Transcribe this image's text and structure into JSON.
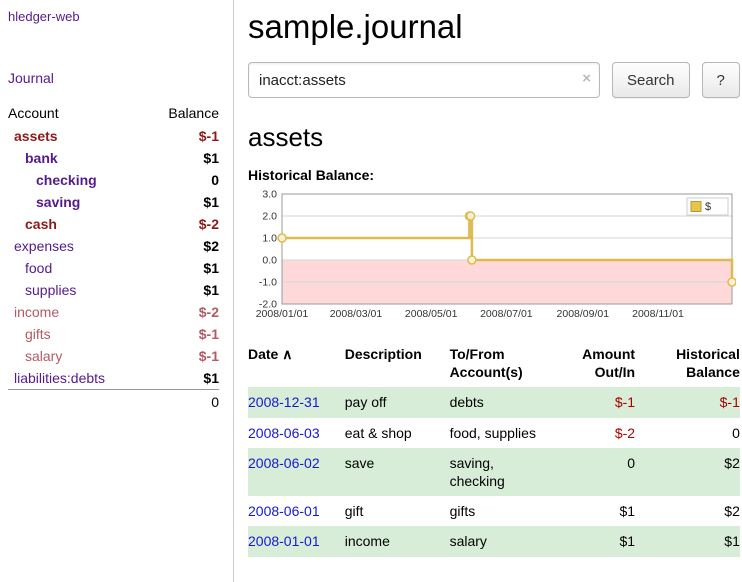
{
  "app_title": "hledger-web",
  "colors": {
    "link_purple": "#551A8B",
    "date_link_blue": "#1818CC",
    "negative_dark_red": "#8B1A1A",
    "negative_soft_red": "#B25A66",
    "negative_register_red": "#A80000",
    "row_shade_green": "#D8EDD8",
    "chart_line_gold": "#DFBA4E",
    "chart_negative_pink": "#FFD9D9"
  },
  "sidebar": {
    "journal_link": "Journal",
    "headers": {
      "account": "Account",
      "balance": "Balance"
    },
    "accounts": [
      {
        "name": "assets",
        "balance": "$-1",
        "depth": 0,
        "inacct": true
      },
      {
        "name": "bank",
        "balance": "$1",
        "depth": 1,
        "inacct": true
      },
      {
        "name": "checking",
        "balance": "0",
        "depth": 2,
        "inacct": true
      },
      {
        "name": "saving",
        "balance": "$1",
        "depth": 2,
        "inacct": true
      },
      {
        "name": "cash",
        "balance": "$-2",
        "depth": 1,
        "inacct": true
      },
      {
        "name": "expenses",
        "balance": "$2",
        "depth": 0,
        "inacct": false
      },
      {
        "name": "food",
        "balance": "$1",
        "depth": 1,
        "inacct": false
      },
      {
        "name": "supplies",
        "balance": "$1",
        "depth": 1,
        "inacct": false
      },
      {
        "name": "income",
        "balance": "$-2",
        "depth": 0,
        "inacct": false
      },
      {
        "name": "gifts",
        "balance": "$-1",
        "depth": 1,
        "inacct": false
      },
      {
        "name": "salary",
        "balance": "$-1",
        "depth": 1,
        "inacct": false
      },
      {
        "name": "liabilities:debts",
        "balance": "$1",
        "depth": 0,
        "inacct": false
      }
    ],
    "total": "0"
  },
  "main": {
    "title": "sample.journal",
    "search": {
      "value": "inacct:assets",
      "clear_icon": "×",
      "search_button": "Search",
      "help_button": "?"
    },
    "account_heading": "assets",
    "chart_title": "Historical Balance:"
  },
  "chart_data": {
    "type": "line",
    "step": true,
    "title": "Historical Balance",
    "series": [
      {
        "name": "$",
        "points": [
          [
            "2008-01-01",
            1
          ],
          [
            "2008-06-01",
            2
          ],
          [
            "2008-06-02",
            2
          ],
          [
            "2008-06-03",
            0
          ],
          [
            "2008-12-31",
            -1
          ]
        ]
      }
    ],
    "ylim": [
      -2,
      3
    ],
    "yticks": [
      3.0,
      2.0,
      1.0,
      0.0,
      -1.0,
      -2.0
    ],
    "xticks": [
      "2008/01/01",
      "2008/03/01",
      "2008/05/01",
      "2008/07/01",
      "2008/09/01",
      "2008/11/01"
    ],
    "grid": true,
    "line_color": "#DFBA4E",
    "negative_region_fill": "#FFD9D9",
    "legend": {
      "label": "$",
      "position": "top-right",
      "swatch_color": "#E8C44C"
    }
  },
  "register": {
    "headers": [
      {
        "key": "date",
        "lines": [
          "Date"
        ],
        "align": "left",
        "sortable": true,
        "sort_indicator": "∧"
      },
      {
        "key": "description",
        "lines": [
          "Description"
        ],
        "align": "left",
        "sortable": false
      },
      {
        "key": "accounts",
        "lines": [
          "To/From",
          "Account(s)"
        ],
        "align": "left",
        "sortable": false
      },
      {
        "key": "amount",
        "lines": [
          "Amount",
          "Out/In"
        ],
        "align": "right",
        "sortable": false
      },
      {
        "key": "balance",
        "lines": [
          "Historical",
          "Balance"
        ],
        "align": "right",
        "sortable": false
      }
    ],
    "rows": [
      {
        "date": "2008-12-31",
        "description": "pay off",
        "accounts": "debts",
        "amount": "$-1",
        "balance": "$-1"
      },
      {
        "date": "2008-06-03",
        "description": "eat & shop",
        "accounts": "food, supplies",
        "amount": "$-2",
        "balance": "0"
      },
      {
        "date": "2008-06-02",
        "description": "save",
        "accounts": "saving, checking",
        "amount": "0",
        "balance": "$2"
      },
      {
        "date": "2008-06-01",
        "description": "gift",
        "accounts": "gifts",
        "amount": "$1",
        "balance": "$2"
      },
      {
        "date": "2008-01-01",
        "description": "income",
        "accounts": "salary",
        "amount": "$1",
        "balance": "$1"
      }
    ]
  }
}
